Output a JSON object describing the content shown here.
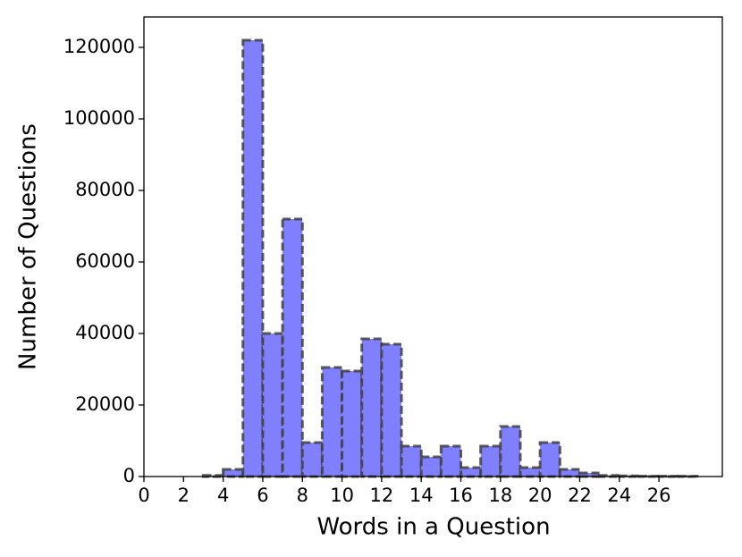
{
  "chart_data": {
    "type": "histogram",
    "xlabel": "Words in a Question",
    "ylabel": "Number of Questions",
    "bins": [
      1,
      2,
      3,
      4,
      5,
      6,
      7,
      8,
      9,
      10,
      11,
      12,
      13,
      14,
      15,
      16,
      17,
      18,
      19,
      20,
      21,
      22,
      23,
      24,
      25,
      26,
      27,
      28
    ],
    "values": [
      0,
      0,
      300,
      2000,
      122000,
      40000,
      72000,
      9500,
      30500,
      29500,
      38500,
      37000,
      8500,
      5500,
      8500,
      2500,
      8500,
      14000,
      2500,
      9500,
      2000,
      1000,
      300,
      200,
      100,
      100,
      100
    ],
    "color": "#8080ff",
    "edgecolor": "#404040",
    "xlim": [
      0,
      29.2
    ],
    "ylim": [
      0,
      128500
    ],
    "xticks": [
      0,
      2,
      4,
      6,
      8,
      10,
      12,
      14,
      16,
      18,
      20,
      22,
      24,
      26
    ],
    "yticks": [
      0,
      20000,
      40000,
      60000,
      80000,
      100000,
      120000
    ]
  }
}
